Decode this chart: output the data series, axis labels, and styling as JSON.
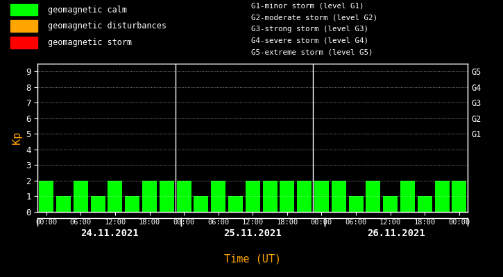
{
  "bg_color": "#000000",
  "text_color": "#ffffff",
  "bar_color": "#00ff00",
  "orange_color": "#ffa500",
  "kp_values": [
    2,
    1,
    2,
    1,
    2,
    1,
    2,
    2,
    2,
    1,
    2,
    1,
    2,
    2,
    2,
    2,
    2,
    2,
    1,
    2,
    1,
    2,
    1,
    2,
    2
  ],
  "days": [
    "24.11.2021",
    "25.11.2021",
    "26.11.2021"
  ],
  "time_labels": [
    "00:00",
    "06:00",
    "12:00",
    "18:00",
    "00:00",
    "06:00",
    "12:00",
    "18:00",
    "00:00",
    "06:00",
    "12:00",
    "18:00",
    "00:00"
  ],
  "ylim": [
    0,
    9.5
  ],
  "yticks": [
    0,
    1,
    2,
    3,
    4,
    5,
    6,
    7,
    8,
    9
  ],
  "ylabel": "Kp",
  "xlabel": "Time (UT)",
  "right_labels": [
    "G1",
    "G2",
    "G3",
    "G4",
    "G5"
  ],
  "right_label_yvals": [
    5,
    6,
    7,
    8,
    9
  ],
  "legend_items": [
    {
      "label": "geomagnetic calm",
      "color": "#00ff00"
    },
    {
      "label": "geomagnetic disturbances",
      "color": "#ffa500"
    },
    {
      "label": "geomagnetic storm",
      "color": "#ff0000"
    }
  ],
  "g_level_texts": [
    "G1-minor storm (level G1)",
    "G2-moderate storm (level G2)",
    "G3-strong storm (level G3)",
    "G4-severe storm (level G4)",
    "G5-extreme storm (level G5)"
  ],
  "bar_width": 0.85,
  "vline_positions": [
    8,
    16
  ],
  "num_bars": 25
}
